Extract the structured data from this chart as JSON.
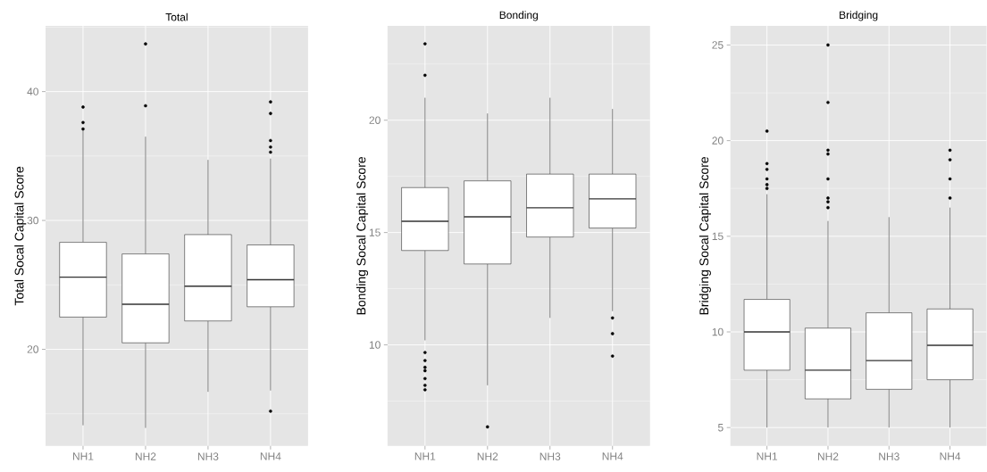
{
  "chart_data": [
    {
      "type": "box",
      "title": "Total",
      "ylabel": "Total Socal Capital Score",
      "categories": [
        "NH1",
        "NH2",
        "NH3",
        "NH4"
      ],
      "ylim": [
        12.5,
        45.1
      ],
      "yticks": [
        20,
        30,
        40
      ],
      "grid": true,
      "boxes": [
        {
          "low": 14.1,
          "q1": 22.5,
          "median": 25.6,
          "q3": 28.3,
          "high": 37.1,
          "outliers": [
            37.1,
            37.6,
            38.8
          ]
        },
        {
          "low": 13.9,
          "q1": 20.5,
          "median": 23.5,
          "q3": 27.4,
          "high": 36.5,
          "outliers": [
            38.9,
            43.7
          ]
        },
        {
          "low": 16.7,
          "q1": 22.2,
          "median": 24.9,
          "q3": 28.9,
          "high": 34.7
        },
        {
          "low": 16.8,
          "q1": 23.3,
          "median": 25.4,
          "q3": 28.1,
          "high": 34.8,
          "outliers": [
            15.2,
            35.3,
            35.7,
            36.2,
            38.3,
            39.2
          ]
        }
      ]
    },
    {
      "type": "box",
      "title": "Bonding",
      "ylabel": "Bonding Socal Capital Score",
      "categories": [
        "NH1",
        "NH2",
        "NH3",
        "NH4"
      ],
      "ylim": [
        5.5,
        24.2
      ],
      "yticks": [
        10,
        15,
        20
      ],
      "grid": true,
      "boxes": [
        {
          "low": 10.2,
          "q1": 14.2,
          "median": 15.5,
          "q3": 17.0,
          "high": 21.0,
          "outliers": [
            8.0,
            8.2,
            8.5,
            8.85,
            9.0,
            9.3,
            9.66,
            22.0,
            23.4
          ]
        },
        {
          "low": 8.2,
          "q1": 13.6,
          "median": 15.7,
          "q3": 17.3,
          "high": 20.3,
          "outliers": [
            6.35
          ]
        },
        {
          "low": 11.2,
          "q1": 14.8,
          "median": 16.1,
          "q3": 17.6,
          "high": 21.0
        },
        {
          "low": 11.5,
          "q1": 15.2,
          "median": 16.5,
          "q3": 17.6,
          "high": 20.5,
          "outliers": [
            9.5,
            10.5,
            11.2
          ]
        }
      ]
    },
    {
      "type": "box",
      "title": "Bridging",
      "ylabel": "Bridging Socal Capital Score",
      "categories": [
        "NH1",
        "NH2",
        "NH3",
        "NH4"
      ],
      "ylim": [
        4.04,
        26.0
      ],
      "yticks": [
        5,
        10,
        15,
        20,
        25
      ],
      "grid": true,
      "boxes": [
        {
          "low": 5,
          "q1": 8.0,
          "median": 10.0,
          "q3": 11.7,
          "high": 17.2,
          "outliers": [
            17.5,
            17.7,
            18.0,
            18.5,
            18.8,
            20.5
          ]
        },
        {
          "low": 5,
          "q1": 6.5,
          "median": 8.0,
          "q3": 10.2,
          "high": 15.8,
          "outliers": [
            16.5,
            16.8,
            17.0,
            18.0,
            19.3,
            19.5,
            22.0,
            25.0
          ]
        },
        {
          "low": 5,
          "q1": 7.0,
          "median": 8.5,
          "q3": 11.0,
          "high": 16.0
        },
        {
          "low": 5,
          "q1": 7.5,
          "median": 9.3,
          "q3": 11.2,
          "high": 16.5,
          "outliers": [
            17.0,
            18.0,
            19.0,
            19.5
          ]
        }
      ]
    }
  ]
}
